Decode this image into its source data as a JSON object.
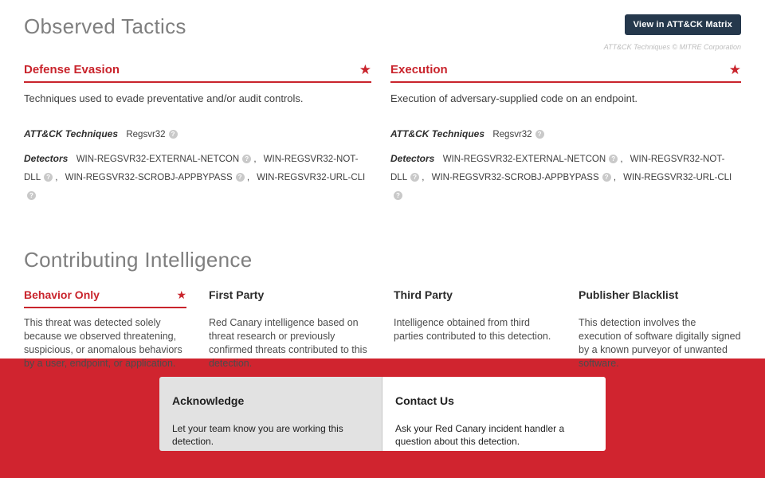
{
  "icons": {
    "star": "★",
    "help": "?"
  },
  "colors": {
    "accent_red": "#C9242C",
    "footer_red": "#D0242F",
    "button_navy": "#25384C"
  },
  "header": {
    "title": "Observed Tactics",
    "matrix_button_label": "View in ATT&CK Matrix",
    "mitre_credit": "ATT&CK Techniques © MITRE Corporation"
  },
  "tactics": [
    {
      "name": "Defense Evasion",
      "starred": true,
      "description": "Techniques used to evade preventative and/or audit controls.",
      "techniques_label": "ATT&CK Techniques",
      "techniques": [
        "Regsvr32"
      ],
      "detectors_label": "Detectors",
      "detectors": [
        "WIN-REGSVR32-EXTERNAL-NETCON",
        "WIN-REGSVR32-NOT-DLL",
        "WIN-REGSVR32-SCROBJ-APPBYPASS",
        "WIN-REGSVR32-URL-CLI"
      ]
    },
    {
      "name": "Execution",
      "starred": true,
      "description": "Execution of adversary-supplied code on an endpoint.",
      "techniques_label": "ATT&CK Techniques",
      "techniques": [
        "Regsvr32"
      ],
      "detectors_label": "Detectors",
      "detectors": [
        "WIN-REGSVR32-EXTERNAL-NETCON",
        "WIN-REGSVR32-NOT-DLL",
        "WIN-REGSVR32-SCROBJ-APPBYPASS",
        "WIN-REGSVR32-URL-CLI"
      ]
    }
  ],
  "intelligence": {
    "title": "Contributing Intelligence",
    "items": [
      {
        "name": "Behavior Only",
        "starred": true,
        "description": "This threat was detected solely because we observed threatening, suspicious, or anomalous behaviors by a user, endpoint, or application."
      },
      {
        "name": "First Party",
        "starred": false,
        "description": "Red Canary intelligence based on threat research or previously confirmed threats contributed to this detection."
      },
      {
        "name": "Third Party",
        "starred": false,
        "description": "Intelligence obtained from third parties contributed to this detection."
      },
      {
        "name": "Publisher Blacklist",
        "starred": false,
        "description": "This detection involves the execution of software digitally signed by a known purveyor of unwanted software."
      }
    ]
  },
  "footer": {
    "cards": [
      {
        "title": "Acknowledge",
        "description": "Let your team know you are working this detection."
      },
      {
        "title": "Contact Us",
        "description": "Ask your Red Canary incident handler a question about this detection."
      }
    ]
  }
}
